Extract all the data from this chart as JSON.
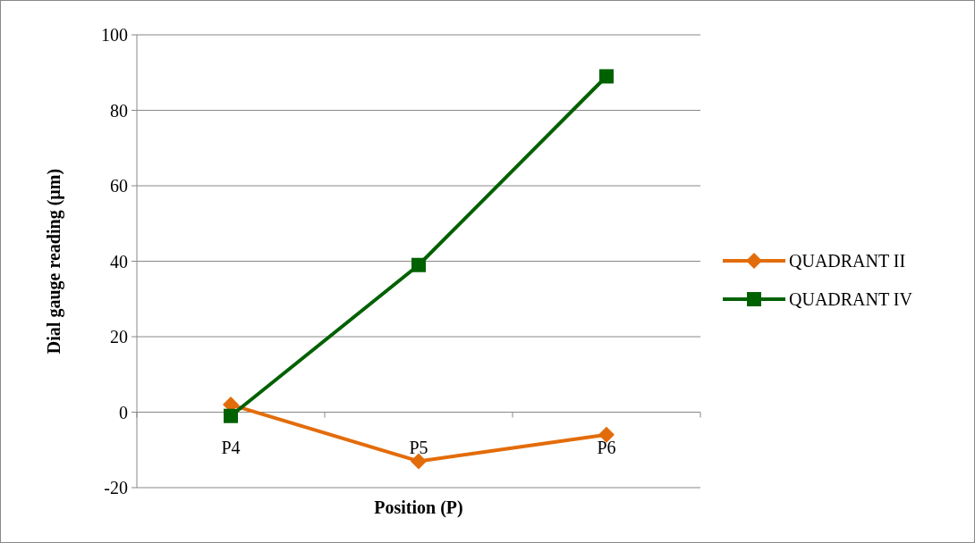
{
  "chart_data": {
    "type": "line",
    "xlabel": "Position (P)",
    "ylabel": "Dial gauge reading (µm)",
    "categories": [
      "P4",
      "P5",
      "P6"
    ],
    "series": [
      {
        "name": "QUADRANT II",
        "color": "#e36c0a",
        "values": [
          2,
          -13,
          -6
        ],
        "marker": "diamond"
      },
      {
        "name": "QUADRANT IV",
        "color": "#006100",
        "values": [
          -1,
          39,
          89
        ],
        "marker": "square"
      }
    ],
    "ylim": [
      -20,
      100
    ],
    "yticks": [
      -20,
      0,
      20,
      40,
      60,
      80,
      100
    ],
    "grid": "y",
    "legend": "right",
    "line_style": "solid"
  }
}
